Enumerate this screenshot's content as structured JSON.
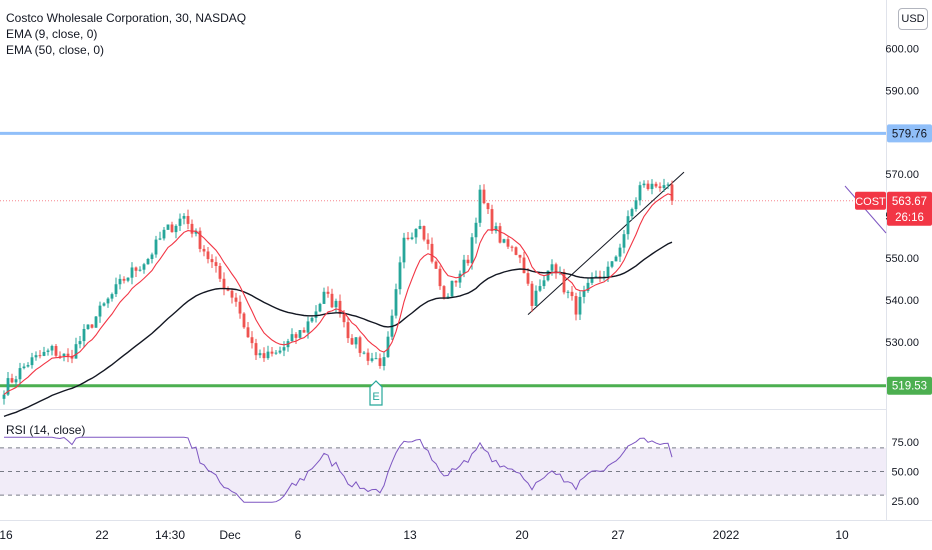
{
  "legend": {
    "symbol": "Costco Wholesale Corporation, 30, NASDAQ",
    "ema_fast": "EMA (9, close, 0)",
    "ema_slow": "EMA (50, close, 0)"
  },
  "currency": "USD",
  "rsi_title": "RSI (14, close)",
  "colors": {
    "up": "#26a69a",
    "down": "#ef5350",
    "ema_fast": "#f23645",
    "ema_slow": "#131722",
    "resistance": "#90bff9",
    "support": "#4caf50",
    "rsi": "#7e57c2",
    "rsi_band": "#ede7f6",
    "price_tag": "#f23645",
    "trendline": "#131722"
  },
  "chart_data": [
    {
      "type": "candlestick",
      "title": "Costco Wholesale Corporation, 30, NASDAQ",
      "ylim": [
        516,
        606
      ],
      "y_ticks": [
        530,
        540,
        550,
        560,
        570,
        590,
        600
      ],
      "y_tick_labels": [
        "530.00",
        "540.00",
        "550.00",
        "560.00",
        "570.00",
        "590.00",
        "600.00"
      ],
      "x_tick_labels": [
        "16",
        "22",
        "14:30",
        "Dec",
        "6",
        "13",
        "20",
        "27",
        "2022",
        "10"
      ],
      "x_tick_bar_index": [
        0,
        24,
        41,
        56,
        73,
        101,
        129,
        153,
        180,
        209
      ],
      "bars_visible": 168,
      "price_keypoints": [
        [
          0,
          519
        ],
        [
          6,
          525
        ],
        [
          12,
          528
        ],
        [
          16,
          526
        ],
        [
          23,
          536
        ],
        [
          30,
          545
        ],
        [
          36,
          550
        ],
        [
          40,
          556
        ],
        [
          45,
          560
        ],
        [
          50,
          552
        ],
        [
          54,
          545
        ],
        [
          58,
          540
        ],
        [
          61,
          531
        ],
        [
          64,
          526
        ],
        [
          68,
          527
        ],
        [
          75,
          533
        ],
        [
          80,
          541
        ],
        [
          84,
          538
        ],
        [
          86,
          532
        ],
        [
          90,
          527
        ],
        [
          95,
          525
        ],
        [
          97,
          535
        ],
        [
          100,
          554
        ],
        [
          104,
          559
        ],
        [
          107,
          550
        ],
        [
          110,
          540
        ],
        [
          116,
          550
        ],
        [
          119,
          565
        ],
        [
          122,
          558
        ],
        [
          125,
          553
        ],
        [
          129,
          551
        ],
        [
          132,
          540
        ],
        [
          135,
          544
        ],
        [
          137,
          550
        ],
        [
          140,
          543
        ],
        [
          143,
          538
        ],
        [
          147,
          544
        ],
        [
          152,
          548
        ],
        [
          155,
          556
        ],
        [
          159,
          567
        ],
        [
          162,
          567
        ],
        [
          165,
          568
        ],
        [
          166,
          566
        ],
        [
          167,
          563.67
        ]
      ],
      "ema_fast": {
        "name": "EMA (9, close, 0)"
      },
      "ema_slow": {
        "name": "EMA (50, close, 0)"
      },
      "horizontal_levels": [
        {
          "value": 579.76,
          "label": "579.76",
          "color": "resistance"
        },
        {
          "value": 519.53,
          "label": "519.53",
          "color": "support"
        }
      ],
      "last_price": {
        "ticker": "COST",
        "value": 563.67,
        "label": "563.67",
        "countdown": "26:16"
      },
      "trendline": {
        "from": [
          131,
          536.5
        ],
        "to": [
          170,
          570.5
        ]
      },
      "event_marker": {
        "label": "E",
        "bar_index": 93
      }
    },
    {
      "type": "line",
      "title": "RSI (14, close)",
      "ylim": [
        22,
        80
      ],
      "y_ticks": [
        25,
        50,
        75
      ],
      "y_tick_labels": [
        "25.00",
        "50.00",
        "75.00"
      ],
      "band": [
        30,
        70
      ],
      "midline": 50
    }
  ]
}
